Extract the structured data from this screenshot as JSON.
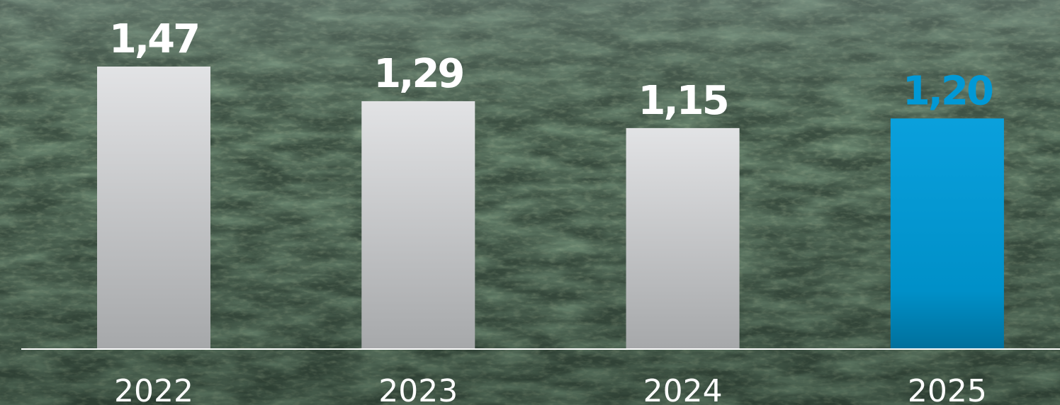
{
  "chart_data": {
    "type": "bar",
    "categories": [
      "2022",
      "2023",
      "2024",
      "2025"
    ],
    "values": [
      1.47,
      1.29,
      1.15,
      1.2
    ],
    "value_labels": [
      "1,47",
      "1,29",
      "1,15",
      "1,20"
    ],
    "highlight_index": 3,
    "title": "",
    "xlabel": "",
    "ylabel": "",
    "ylim": [
      0,
      1.47
    ],
    "grid": false,
    "legend": "none"
  },
  "colors": {
    "bar": "#d8d9db",
    "bar_highlight": "#0099d6",
    "label": "#ffffff",
    "label_highlight": "#0099d6",
    "axis": "#ffffff",
    "background": "#3a4d3c"
  }
}
